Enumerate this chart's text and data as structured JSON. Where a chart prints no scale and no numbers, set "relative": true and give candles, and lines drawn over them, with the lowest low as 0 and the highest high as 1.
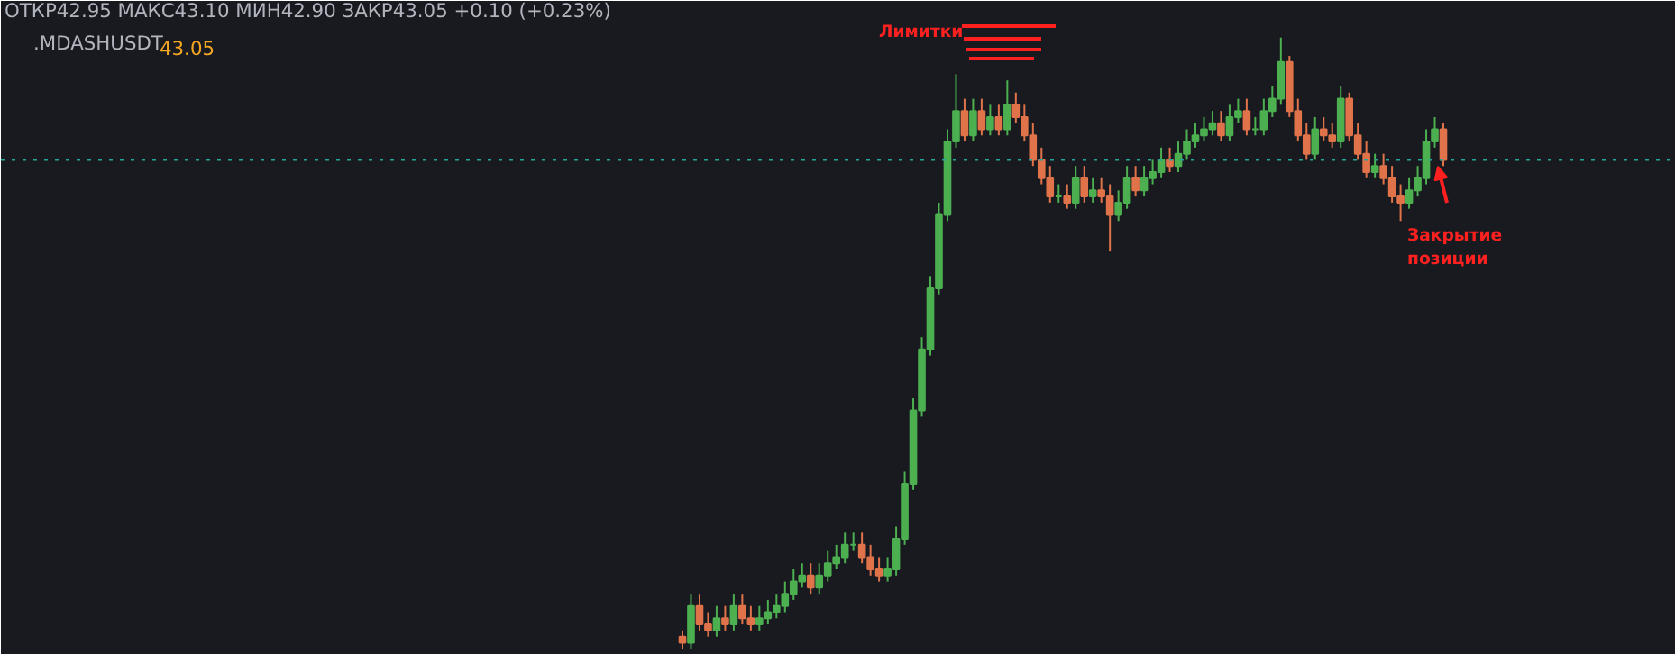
{
  "chart_data": {
    "type": "candlestick",
    "relative": true,
    "title": ".MDASHUSDT",
    "annotations": [
      "ОТКР42.95 МАКС43.10 МИН42.90 ЗАКР43.05 +0.10 (+0.23%)",
      "43.05",
      "Лимитки",
      "Закрытие позиции"
    ],
    "ref_lines": [
      {
        "axis": "y",
        "value": 0.8,
        "label": null,
        "color": "#26a69a",
        "line_style": "dotted"
      }
    ],
    "categories": [
      null,
      null,
      null,
      null,
      null,
      null,
      null,
      null,
      null,
      null,
      null,
      null,
      null,
      null,
      null,
      null,
      null,
      null,
      null,
      null,
      null,
      null,
      null,
      null,
      null,
      null,
      null,
      null,
      null,
      null,
      null,
      null,
      null,
      null,
      null,
      null,
      null,
      null,
      null,
      null,
      null,
      null,
      null,
      null,
      null,
      null,
      null,
      null,
      null,
      null,
      null,
      null,
      null,
      null,
      null,
      null,
      null,
      null,
      null,
      null,
      null,
      null,
      null,
      null,
      null,
      null,
      null,
      null,
      null,
      null,
      null,
      null,
      null,
      null,
      null,
      null,
      null,
      null,
      null,
      null,
      null,
      null,
      null,
      null,
      null,
      null,
      null,
      null,
      null,
      null
    ],
    "ohlc": [
      [
        0.02,
        0.03,
        0.0,
        0.01
      ],
      [
        0.01,
        0.09,
        0.0,
        0.07
      ],
      [
        0.07,
        0.09,
        0.03,
        0.04
      ],
      [
        0.04,
        0.06,
        0.02,
        0.03
      ],
      [
        0.03,
        0.07,
        0.02,
        0.05
      ],
      [
        0.05,
        0.07,
        0.03,
        0.04
      ],
      [
        0.04,
        0.09,
        0.03,
        0.07
      ],
      [
        0.07,
        0.09,
        0.04,
        0.05
      ],
      [
        0.05,
        0.07,
        0.03,
        0.04
      ],
      [
        0.04,
        0.07,
        0.03,
        0.05
      ],
      [
        0.05,
        0.08,
        0.04,
        0.06
      ],
      [
        0.06,
        0.09,
        0.05,
        0.07
      ],
      [
        0.07,
        0.11,
        0.06,
        0.09
      ],
      [
        0.09,
        0.13,
        0.08,
        0.11
      ],
      [
        0.11,
        0.14,
        0.1,
        0.12
      ],
      [
        0.12,
        0.14,
        0.09,
        0.1
      ],
      [
        0.1,
        0.14,
        0.09,
        0.12
      ],
      [
        0.12,
        0.16,
        0.11,
        0.14
      ],
      [
        0.14,
        0.17,
        0.13,
        0.15
      ],
      [
        0.15,
        0.19,
        0.14,
        0.17
      ],
      [
        0.17,
        0.19,
        0.16,
        0.17
      ],
      [
        0.17,
        0.19,
        0.14,
        0.15
      ],
      [
        0.15,
        0.17,
        0.12,
        0.13
      ],
      [
        0.13,
        0.15,
        0.11,
        0.12
      ],
      [
        0.12,
        0.15,
        0.11,
        0.13
      ],
      [
        0.13,
        0.2,
        0.12,
        0.18
      ],
      [
        0.18,
        0.29,
        0.17,
        0.27
      ],
      [
        0.27,
        0.41,
        0.26,
        0.39
      ],
      [
        0.39,
        0.51,
        0.38,
        0.49
      ],
      [
        0.49,
        0.61,
        0.48,
        0.59
      ],
      [
        0.59,
        0.73,
        0.58,
        0.71
      ],
      [
        0.71,
        0.85,
        0.7,
        0.83
      ],
      [
        0.83,
        0.94,
        0.82,
        0.88
      ],
      [
        0.88,
        0.9,
        0.83,
        0.84
      ],
      [
        0.84,
        0.9,
        0.83,
        0.88
      ],
      [
        0.88,
        0.9,
        0.84,
        0.85
      ],
      [
        0.85,
        0.89,
        0.84,
        0.87
      ],
      [
        0.87,
        0.89,
        0.84,
        0.85
      ],
      [
        0.85,
        0.93,
        0.84,
        0.89
      ],
      [
        0.89,
        0.91,
        0.86,
        0.87
      ],
      [
        0.87,
        0.89,
        0.83,
        0.84
      ],
      [
        0.84,
        0.86,
        0.79,
        0.8
      ],
      [
        0.8,
        0.82,
        0.76,
        0.77
      ],
      [
        0.77,
        0.79,
        0.73,
        0.74
      ],
      [
        0.74,
        0.76,
        0.73,
        0.74
      ],
      [
        0.74,
        0.76,
        0.72,
        0.73
      ],
      [
        0.73,
        0.79,
        0.72,
        0.77
      ],
      [
        0.77,
        0.79,
        0.73,
        0.74
      ],
      [
        0.74,
        0.77,
        0.73,
        0.75
      ],
      [
        0.75,
        0.77,
        0.73,
        0.74
      ],
      [
        0.74,
        0.76,
        0.65,
        0.71
      ],
      [
        0.71,
        0.75,
        0.7,
        0.73
      ],
      [
        0.73,
        0.79,
        0.72,
        0.77
      ],
      [
        0.77,
        0.79,
        0.74,
        0.75
      ],
      [
        0.75,
        0.79,
        0.74,
        0.77
      ],
      [
        0.77,
        0.8,
        0.76,
        0.78
      ],
      [
        0.78,
        0.82,
        0.77,
        0.8
      ],
      [
        0.8,
        0.82,
        0.78,
        0.79
      ],
      [
        0.79,
        0.83,
        0.78,
        0.81
      ],
      [
        0.81,
        0.85,
        0.8,
        0.83
      ],
      [
        0.83,
        0.86,
        0.82,
        0.84
      ],
      [
        0.84,
        0.87,
        0.83,
        0.85
      ],
      [
        0.85,
        0.88,
        0.84,
        0.86
      ],
      [
        0.86,
        0.88,
        0.83,
        0.84
      ],
      [
        0.84,
        0.89,
        0.83,
        0.87
      ],
      [
        0.87,
        0.9,
        0.86,
        0.88
      ],
      [
        0.88,
        0.9,
        0.84,
        0.85
      ],
      [
        0.85,
        0.87,
        0.84,
        0.85
      ],
      [
        0.85,
        0.9,
        0.84,
        0.88
      ],
      [
        0.88,
        0.92,
        0.87,
        0.9
      ],
      [
        0.9,
        1.0,
        0.89,
        0.96
      ],
      [
        0.96,
        0.97,
        0.87,
        0.88
      ],
      [
        0.88,
        0.9,
        0.83,
        0.84
      ],
      [
        0.84,
        0.86,
        0.8,
        0.81
      ],
      [
        0.81,
        0.87,
        0.8,
        0.85
      ],
      [
        0.85,
        0.87,
        0.83,
        0.84
      ],
      [
        0.84,
        0.86,
        0.82,
        0.83
      ],
      [
        0.83,
        0.92,
        0.82,
        0.9
      ],
      [
        0.9,
        0.91,
        0.83,
        0.84
      ],
      [
        0.84,
        0.86,
        0.8,
        0.81
      ],
      [
        0.81,
        0.83,
        0.77,
        0.78
      ],
      [
        0.78,
        0.81,
        0.77,
        0.79
      ],
      [
        0.79,
        0.81,
        0.76,
        0.77
      ],
      [
        0.77,
        0.79,
        0.73,
        0.74
      ],
      [
        0.74,
        0.76,
        0.7,
        0.73
      ],
      [
        0.73,
        0.77,
        0.72,
        0.75
      ],
      [
        0.75,
        0.79,
        0.74,
        0.77
      ],
      [
        0.77,
        0.85,
        0.76,
        0.83
      ],
      [
        0.83,
        0.87,
        0.82,
        0.85
      ],
      [
        0.85,
        0.86,
        0.79,
        0.8
      ]
    ]
  }
}
